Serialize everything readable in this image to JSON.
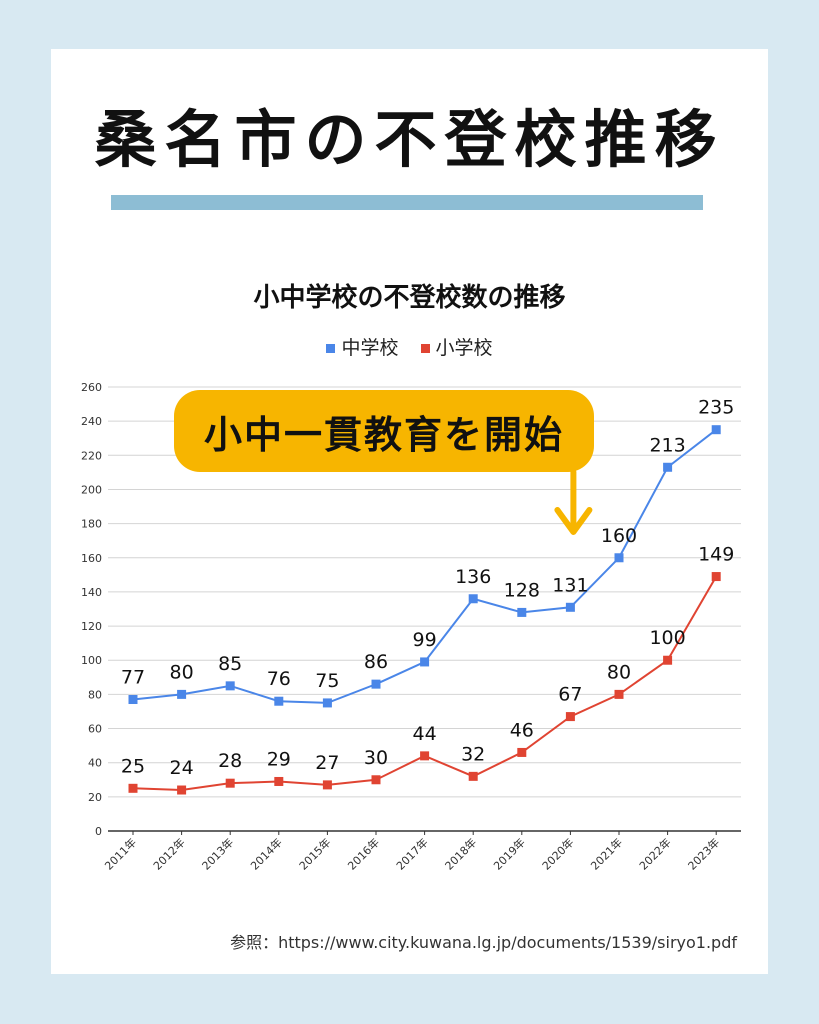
{
  "page": {
    "title": "桑名市の不登校推移",
    "callout": "小中一貫教育を開始",
    "source": "参照：https://www.city.kuwana.lg.jp/documents/1539/siryo1.pdf"
  },
  "colors": {
    "background": "#d8e9f2",
    "title_bar": "#8dbdd4",
    "callout": "#f7b500",
    "middle_school": "#4a86e8",
    "elementary": "#e04432"
  },
  "chart_data": {
    "type": "line",
    "title": "小中学校の不登校数の推移",
    "categories": [
      "2011年",
      "2012年",
      "2013年",
      "2014年",
      "2015年",
      "2016年",
      "2017年",
      "2018年",
      "2019年",
      "2020年",
      "2021年",
      "2022年",
      "2023年"
    ],
    "series": [
      {
        "name": "中学校",
        "color": "#4a86e8",
        "values": [
          77,
          80,
          85,
          76,
          75,
          86,
          99,
          136,
          128,
          131,
          160,
          213,
          235
        ]
      },
      {
        "name": "小学校",
        "color": "#e04432",
        "values": [
          25,
          24,
          28,
          29,
          27,
          30,
          44,
          32,
          46,
          67,
          80,
          100,
          149
        ]
      }
    ],
    "y_ticks": [
      "0",
      "20",
      "40",
      "60",
      "80",
      "100",
      "120",
      "140",
      "160",
      "180",
      "200",
      "220",
      "240",
      "260"
    ],
    "ylim": [
      0,
      260
    ],
    "grid": true,
    "legend_position": "top",
    "annotation_arrow_category": "2020年"
  }
}
